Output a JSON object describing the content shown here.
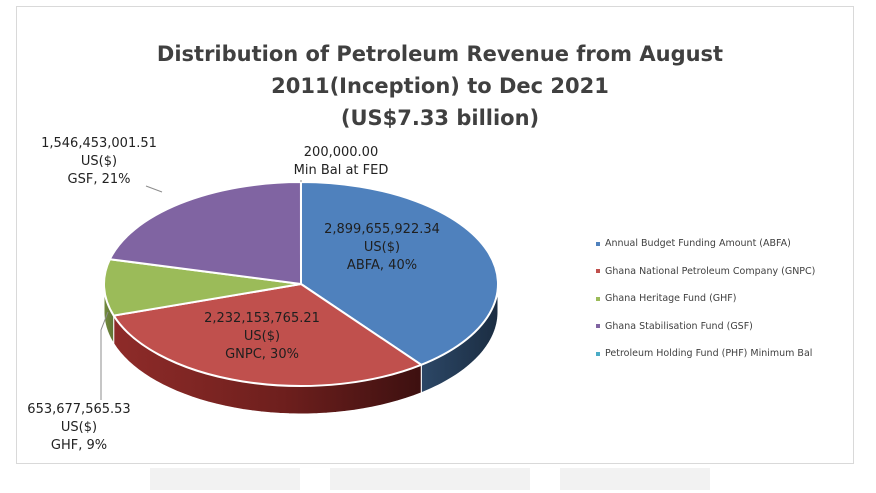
{
  "chart_data": {
    "type": "pie",
    "title_lines": [
      "Distribution of Petroleum Revenue from August",
      "2011(Inception) to Dec 2021",
      "(US$7.33 billion)"
    ],
    "slices": [
      {
        "key": "abfa",
        "legend": "Annual Budget Funding Amount (ABFA)",
        "value": 2899655922.34,
        "value_text": "2,899,655,922.34",
        "unit": "US($)",
        "short": "ABFA, 40%",
        "color": "#4f81bd"
      },
      {
        "key": "gnpc",
        "legend": "Ghana National Petroleum Company (GNPC)",
        "value": 2232153765.21,
        "value_text": "2,232,153,765.21",
        "unit": "US($)",
        "short": "GNPC, 30%",
        "color": "#c0504d"
      },
      {
        "key": "ghf",
        "legend": "Ghana Heritage Fund (GHF)",
        "value": 653677565.53,
        "value_text": "653,677,565.53",
        "unit": "US($)",
        "short": "GHF, 9%",
        "color": "#9bbb59"
      },
      {
        "key": "gsf",
        "legend": "Ghana Stabilisation Fund (GSF)",
        "value": 1546453001.51,
        "value_text": "1,546,453,001.51",
        "unit": "US($)",
        "short": "GSF, 21%",
        "color": "#8064a2"
      },
      {
        "key": "phf",
        "legend": "Petroleum Holding Fund (PHF) Minimum Bal",
        "value": 200000.0,
        "value_text": "200,000.00",
        "unit": "",
        "short": "Min Bal at FED",
        "color": "#4bacc6"
      }
    ],
    "legend_position": "right"
  }
}
